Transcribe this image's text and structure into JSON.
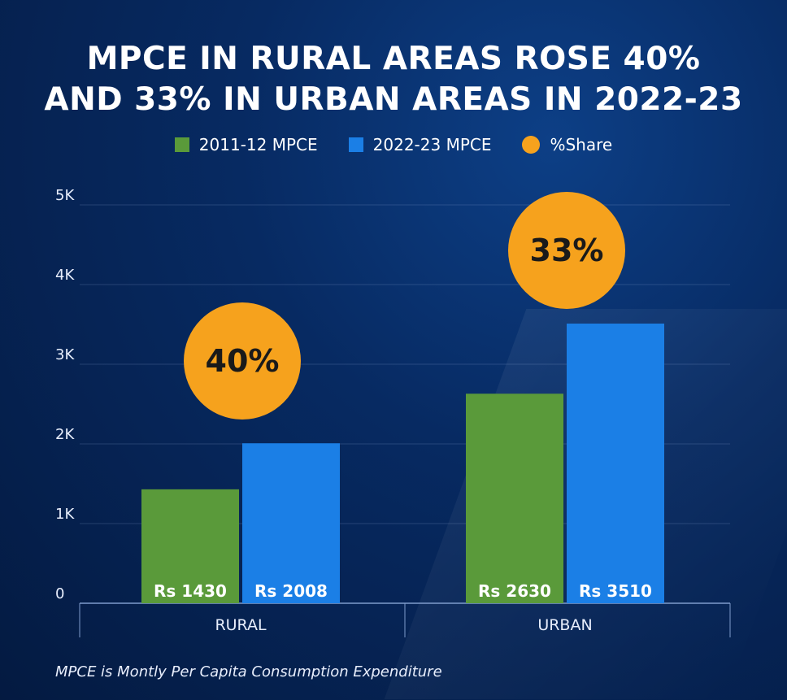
{
  "title_line1": "MPCE IN RURAL AREAS ROSE 40%",
  "title_line2": "AND 33% IN URBAN AREAS IN 2022-23",
  "legend": [
    {
      "label": "2011-12 MPCE",
      "color": "#5a9a3a",
      "shape": "square"
    },
    {
      "label": "2022-23 MPCE",
      "color": "#1b7fe6",
      "shape": "square"
    },
    {
      "label": "%Share",
      "color": "#f6a21d",
      "shape": "circle"
    }
  ],
  "footnote": "MPCE is Montly Per Capita Consumption Expenditure",
  "chart_data": {
    "type": "bar",
    "categories": [
      "RURAL",
      "URBAN"
    ],
    "series": [
      {
        "name": "2011-12 MPCE",
        "values": [
          1430,
          2630
        ],
        "labels": [
          "Rs 1430",
          "Rs 2630"
        ],
        "color": "#5a9a3a"
      },
      {
        "name": "2022-23 MPCE",
        "values": [
          2008,
          3510
        ],
        "labels": [
          "Rs 2008",
          "Rs 3510"
        ],
        "color": "#1b7fe6"
      }
    ],
    "share": {
      "name": "%Share",
      "labels": [
        "40%",
        "33%"
      ],
      "color": "#f6a21d"
    },
    "ylim": [
      0,
      5000
    ],
    "yticks": [
      0,
      1000,
      2000,
      3000,
      4000,
      5000
    ],
    "ytick_labels": [
      "0",
      "1K",
      "2K",
      "3K",
      "4K",
      "5K"
    ],
    "grid": true
  }
}
